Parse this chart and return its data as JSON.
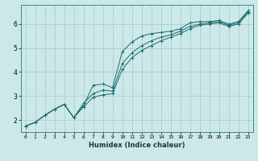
{
  "xlabel": "Humidex (Indice chaleur)",
  "bg_color": "#cde8e8",
  "grid_color": "#aacece",
  "line_color": "#1a6b6b",
  "spine_color": "#3a8a8a",
  "xlim": [
    -0.5,
    23.5
  ],
  "ylim": [
    1.5,
    6.8
  ],
  "xticks": [
    0,
    1,
    2,
    3,
    4,
    5,
    6,
    7,
    8,
    9,
    10,
    11,
    12,
    13,
    14,
    15,
    16,
    17,
    18,
    19,
    20,
    21,
    22,
    23
  ],
  "yticks": [
    2,
    3,
    4,
    5,
    6
  ],
  "line1_x": [
    0,
    1,
    2,
    3,
    4,
    5,
    6,
    7,
    8,
    9,
    10,
    11,
    12,
    13,
    14,
    15,
    16,
    17,
    18,
    19,
    20,
    21,
    22,
    23
  ],
  "line1_y": [
    1.75,
    1.9,
    2.2,
    2.45,
    2.65,
    2.1,
    2.6,
    3.45,
    3.5,
    3.35,
    4.85,
    5.25,
    5.5,
    5.6,
    5.65,
    5.7,
    5.8,
    6.05,
    6.1,
    6.1,
    6.15,
    6.0,
    6.1,
    6.55
  ],
  "line2_x": [
    0,
    1,
    2,
    3,
    4,
    5,
    6,
    7,
    8,
    9,
    10,
    11,
    12,
    13,
    14,
    15,
    16,
    17,
    18,
    19,
    20,
    21,
    22,
    23
  ],
  "line2_y": [
    1.75,
    1.9,
    2.2,
    2.45,
    2.65,
    2.1,
    2.7,
    3.1,
    3.25,
    3.2,
    4.35,
    4.8,
    5.1,
    5.3,
    5.45,
    5.55,
    5.7,
    5.9,
    6.0,
    6.05,
    6.1,
    5.95,
    6.05,
    6.5
  ],
  "line3_x": [
    0,
    1,
    2,
    3,
    4,
    5,
    6,
    7,
    8,
    9,
    10,
    11,
    12,
    13,
    14,
    15,
    16,
    17,
    18,
    19,
    20,
    21,
    22,
    23
  ],
  "line3_y": [
    1.75,
    1.9,
    2.2,
    2.45,
    2.65,
    2.1,
    2.55,
    2.95,
    3.05,
    3.1,
    4.1,
    4.6,
    4.9,
    5.1,
    5.3,
    5.45,
    5.6,
    5.8,
    5.95,
    6.0,
    6.05,
    5.9,
    6.0,
    6.45
  ]
}
